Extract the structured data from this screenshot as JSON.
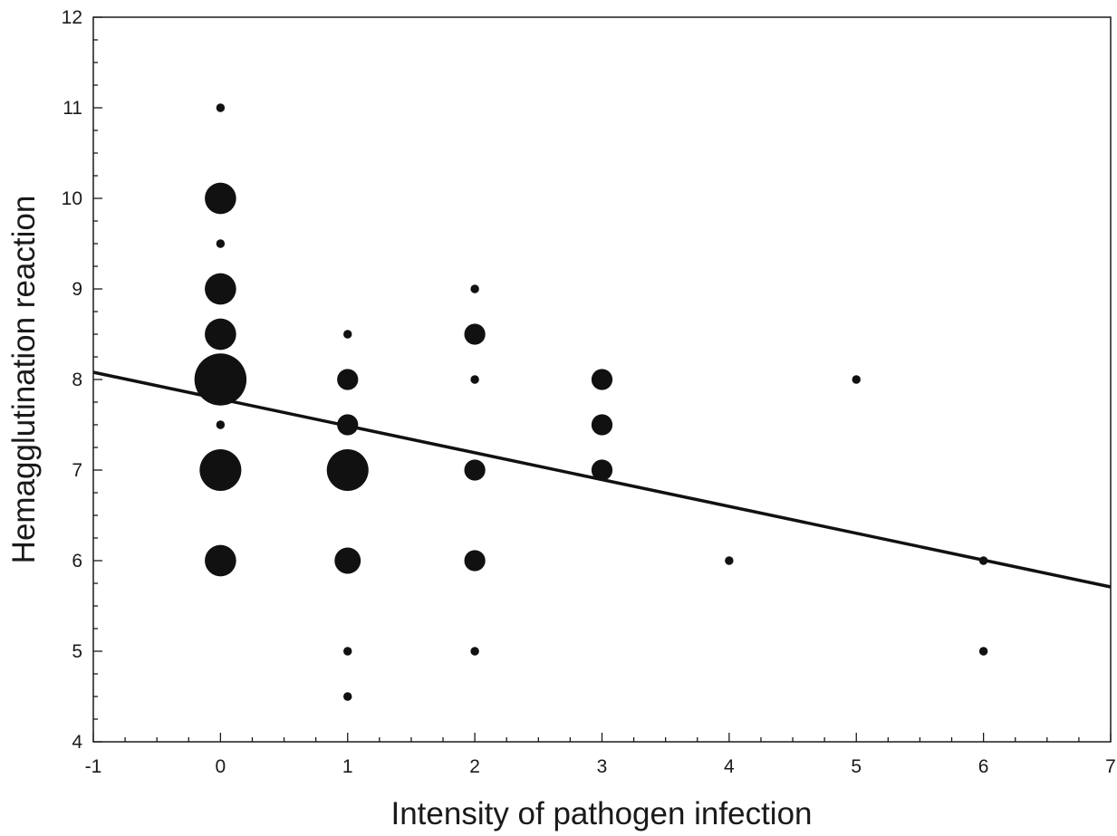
{
  "chart_data": {
    "type": "scatter",
    "title": "",
    "xlabel": "Intensity of pathogen infection",
    "ylabel": "Hemagglutination reaction",
    "xlim": [
      -1,
      7
    ],
    "ylim": [
      4,
      12
    ],
    "xticks": [
      "-1",
      "0",
      "1",
      "2",
      "3",
      "4",
      "5",
      "6",
      "7"
    ],
    "yticks": [
      "4",
      "5",
      "6",
      "7",
      "8",
      "9",
      "10",
      "11",
      "12"
    ],
    "marker_color": "#111111",
    "grid": false,
    "points": [
      {
        "x": 0,
        "y": 11,
        "size": 1
      },
      {
        "x": 0,
        "y": 10,
        "size": 3
      },
      {
        "x": 0,
        "y": 9.5,
        "size": 1
      },
      {
        "x": 0,
        "y": 9,
        "size": 3
      },
      {
        "x": 0,
        "y": 8.5,
        "size": 3
      },
      {
        "x": 0,
        "y": 8,
        "size": 5
      },
      {
        "x": 0,
        "y": 7.5,
        "size": 1
      },
      {
        "x": 0,
        "y": 7,
        "size": 4
      },
      {
        "x": 0,
        "y": 6,
        "size": 3
      },
      {
        "x": 1,
        "y": 8.5,
        "size": 1
      },
      {
        "x": 1,
        "y": 8,
        "size": 2
      },
      {
        "x": 1,
        "y": 7.5,
        "size": 2
      },
      {
        "x": 1,
        "y": 7,
        "size": 4
      },
      {
        "x": 1,
        "y": 6,
        "size": 2.5
      },
      {
        "x": 1,
        "y": 5,
        "size": 1
      },
      {
        "x": 1,
        "y": 4.5,
        "size": 1
      },
      {
        "x": 2,
        "y": 9,
        "size": 1
      },
      {
        "x": 2,
        "y": 8.5,
        "size": 2
      },
      {
        "x": 2,
        "y": 8,
        "size": 1
      },
      {
        "x": 2,
        "y": 7,
        "size": 2
      },
      {
        "x": 2,
        "y": 6,
        "size": 2
      },
      {
        "x": 2,
        "y": 5,
        "size": 1
      },
      {
        "x": 3,
        "y": 8,
        "size": 2
      },
      {
        "x": 3,
        "y": 7.5,
        "size": 2
      },
      {
        "x": 3,
        "y": 7,
        "size": 2
      },
      {
        "x": 4,
        "y": 6,
        "size": 1
      },
      {
        "x": 5,
        "y": 8,
        "size": 1
      },
      {
        "x": 6,
        "y": 6,
        "size": 1
      },
      {
        "x": 6,
        "y": 5,
        "size": 1
      }
    ],
    "trendline": {
      "x": [
        -1,
        7
      ],
      "y": [
        8.08,
        5.71
      ]
    }
  }
}
